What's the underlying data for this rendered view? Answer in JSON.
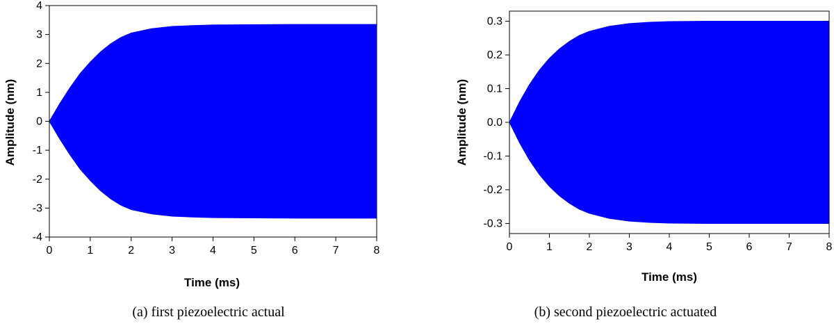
{
  "chart_data": [
    {
      "type": "area",
      "caption": "(a) first piezoelectric actual",
      "xlabel": "Time (ms)",
      "ylabel": "Amplitude (nm)",
      "xlim": [
        0,
        8
      ],
      "ylim": [
        -4,
        4
      ],
      "xticks": [
        "0",
        "1",
        "2",
        "3",
        "4",
        "5",
        "6",
        "7",
        "8"
      ],
      "yticks": [
        "-4",
        "-3",
        "-2",
        "-1",
        "0",
        "1",
        "2",
        "3",
        "4"
      ],
      "color": "#0000ff",
      "envelope": {
        "x": [
          0,
          0.25,
          0.5,
          0.75,
          1,
          1.25,
          1.5,
          1.75,
          2,
          2.5,
          3,
          3.5,
          4,
          5,
          6,
          7,
          8
        ],
        "upper": [
          0,
          0.6,
          1.15,
          1.65,
          2.05,
          2.4,
          2.68,
          2.9,
          3.05,
          3.2,
          3.28,
          3.31,
          3.33,
          3.34,
          3.35,
          3.35,
          3.35
        ],
        "lower": [
          0,
          -0.6,
          -1.15,
          -1.65,
          -2.05,
          -2.4,
          -2.68,
          -2.9,
          -3.05,
          -3.2,
          -3.28,
          -3.31,
          -3.33,
          -3.34,
          -3.35,
          -3.35,
          -3.35
        ]
      }
    },
    {
      "type": "area",
      "caption": "(b) second piezoelectric actuated",
      "xlabel": "Time (ms)",
      "ylabel": "Amplitude (nm)",
      "xlim": [
        0,
        8
      ],
      "ylim": [
        -0.33,
        0.33
      ],
      "xticks": [
        "0",
        "1",
        "2",
        "3",
        "4",
        "5",
        "6",
        "7",
        "8"
      ],
      "ytick_values": [
        -0.3,
        -0.2,
        -0.1,
        0.0,
        0.1,
        0.2,
        0.3
      ],
      "yticks": [
        "-0.3",
        "-0.2",
        "-0.1",
        "0.0",
        "0.1",
        "0.2",
        "0.3"
      ],
      "color": "#0000ff",
      "envelope": {
        "x": [
          0,
          0.25,
          0.5,
          0.75,
          1,
          1.25,
          1.5,
          1.75,
          2,
          2.5,
          3,
          3.5,
          4,
          5,
          6,
          7,
          8
        ],
        "upper": [
          0,
          0.06,
          0.112,
          0.155,
          0.19,
          0.218,
          0.24,
          0.258,
          0.27,
          0.285,
          0.293,
          0.297,
          0.299,
          0.3,
          0.3,
          0.3,
          0.3
        ],
        "lower": [
          0,
          -0.06,
          -0.112,
          -0.155,
          -0.19,
          -0.218,
          -0.24,
          -0.258,
          -0.27,
          -0.285,
          -0.293,
          -0.297,
          -0.299,
          -0.3,
          -0.3,
          -0.3,
          -0.3
        ]
      }
    }
  ]
}
